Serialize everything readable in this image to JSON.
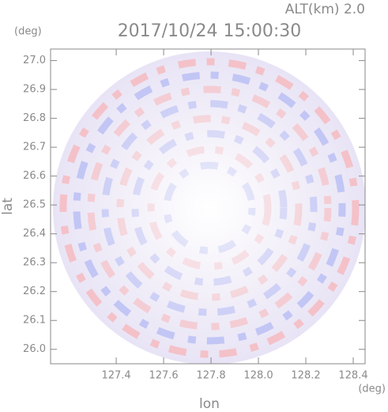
{
  "chart_data": {
    "type": "ppi",
    "title": "2017/10/24 15:00:30",
    "annotation": "ALT(km) 2.0",
    "x_label": "lon",
    "y_label": "lat",
    "x_unit": "(deg)",
    "y_unit": "(deg)",
    "xlim": [
      127.123,
      128.45
    ],
    "ylim": [
      25.95,
      27.04
    ],
    "xticks": [
      127.4,
      127.6,
      127.8,
      {
        "value": 128,
        "label": "128.0"
      },
      128.2,
      128.4
    ],
    "yticks": [
      {
        "value": 26,
        "label": "26.0"
      },
      26.1,
      26.2,
      26.3,
      26.4,
      26.5,
      26.6,
      26.7,
      26.8,
      26.9,
      {
        "value": 27,
        "label": "27.0"
      }
    ]
  }
}
